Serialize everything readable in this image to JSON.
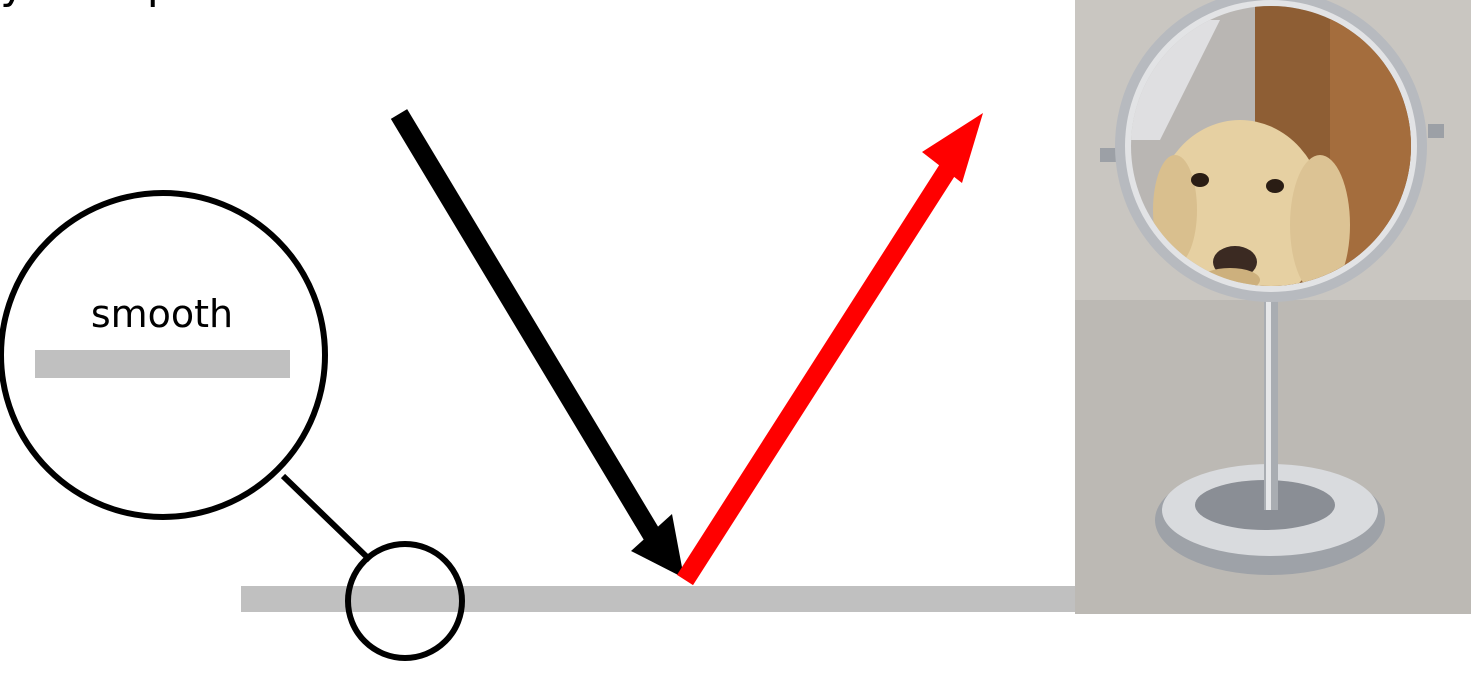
{
  "header": {
    "title_fragment": "y smo  p"
  },
  "diagram": {
    "magnifier_label": "smooth",
    "colors": {
      "surface": "#c0c0c0",
      "incident_ray": "#000000",
      "reflected_ray": "#ff0000",
      "outline": "#000000"
    }
  },
  "photo": {
    "subject": "dog-reflected-in-round-table-mirror",
    "colors": {
      "background": "#bdbab5",
      "wood": "#9a6a3c",
      "chrome": "#c7c9cc",
      "fur": "#e8d3a6"
    }
  }
}
